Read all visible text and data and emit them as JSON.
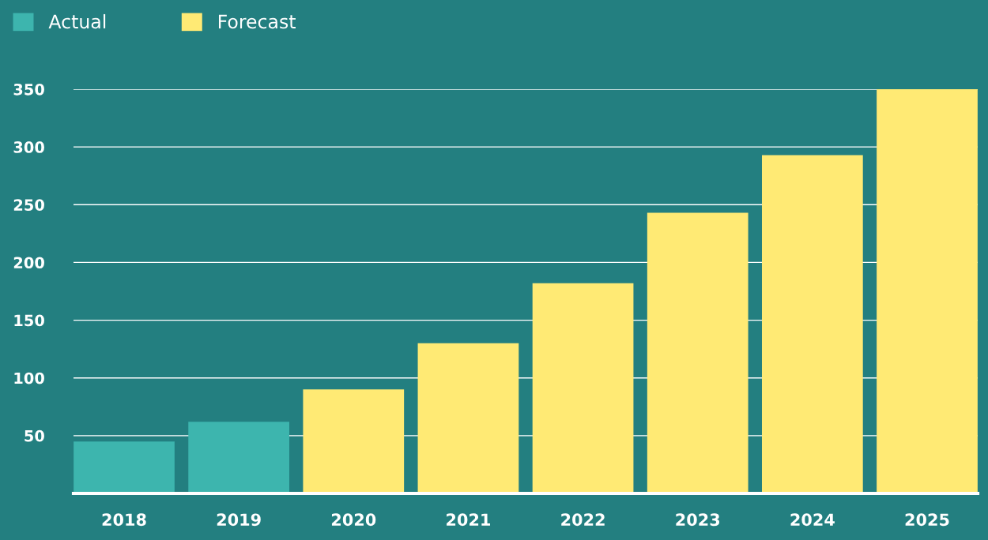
{
  "chart_data": {
    "type": "bar",
    "categories": [
      "2018",
      "2019",
      "2020",
      "2021",
      "2022",
      "2023",
      "2024",
      "2025"
    ],
    "series": [
      {
        "name": "Actual",
        "color": "#3db5ae",
        "values": [
          45,
          62,
          null,
          null,
          null,
          null,
          null,
          null
        ]
      },
      {
        "name": "Forecast",
        "color": "#ffea74",
        "values": [
          null,
          null,
          90,
          130,
          182,
          243,
          293,
          350
        ]
      }
    ],
    "ylim": [
      0,
      350
    ],
    "yticks": [
      50,
      100,
      150,
      200,
      250,
      300,
      350
    ],
    "grid": "y",
    "legend": "top left"
  }
}
